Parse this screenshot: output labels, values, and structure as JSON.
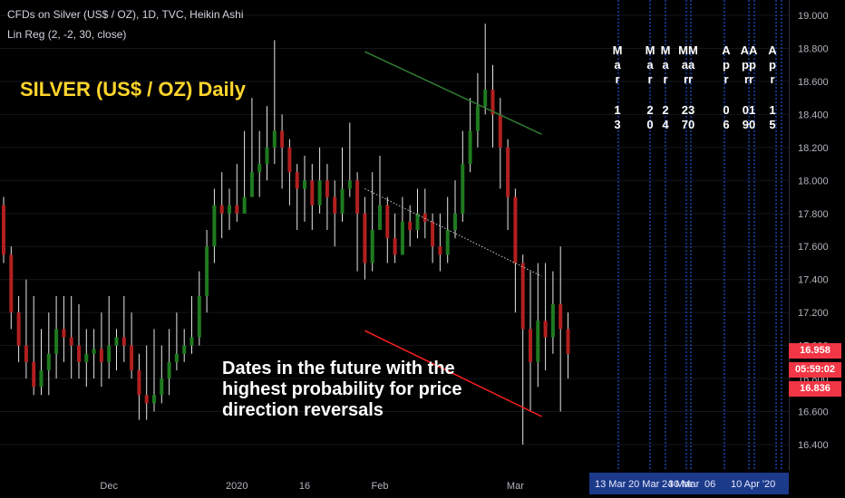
{
  "header": {
    "line1": "CFDs on Silver (US$ / OZ), 1D, TVC, Heikin Ashi",
    "line2": "Lin Reg (2, -2, 30, close)"
  },
  "title_overlay": "SILVER (US$ / OZ) Daily",
  "annotation_lines": [
    "Dates in the future with the",
    "highest probability for price",
    "direction reversals"
  ],
  "price_tags": [
    {
      "label": "16.958",
      "color": "#f23645"
    },
    {
      "label": "05:59:02",
      "color": "#f23645"
    },
    {
      "label": "16.836",
      "color": "#f23645"
    }
  ],
  "colors": {
    "up": "#1f7a1f",
    "down": "#b21f1f",
    "wick": "#e6e6e6",
    "green_line": "#2e7d32",
    "red_line": "#ff1f1f",
    "future_line": "#2962ff",
    "future_label_bg": "#1c3a8a"
  },
  "future_dates_vertical": [
    {
      "month": "Mar",
      "day": "13"
    },
    {
      "month": "Mar",
      "day": "20"
    },
    {
      "month": "Mar",
      "day": "24"
    },
    {
      "month": "MMaarr",
      "day": "2370"
    },
    {
      "month": "Apr",
      "day": "06"
    },
    {
      "month": "AApprr",
      "day": "0190"
    },
    {
      "month": "Apr",
      "day": "15"
    }
  ],
  "future_date_axis_labels": [
    "13 Mar",
    "20 Mar",
    "24 Mar",
    "30 Mar",
    "06",
    "10 Apr '20"
  ],
  "chart_data": {
    "type": "candlestick",
    "style": "Heikin Ashi",
    "ylim": [
      16.3,
      19.05
    ],
    "y_ticks": [
      "16.400",
      "16.600",
      "16.800",
      "17.000",
      "17.200",
      "17.400",
      "17.600",
      "17.800",
      "18.000",
      "18.200",
      "18.400",
      "18.600",
      "18.800",
      "19.000"
    ],
    "x_labels": [
      {
        "label": "Dec",
        "index": 14
      },
      {
        "label": "2020",
        "index": 31
      },
      {
        "label": "16",
        "index": 40
      },
      {
        "label": "Feb",
        "index": 50
      },
      {
        "label": "Mar",
        "index": 68
      }
    ],
    "candles": [
      [
        17.85,
        17.55,
        17.9,
        17.5
      ],
      [
        17.55,
        17.2,
        17.6,
        17.1
      ],
      [
        17.2,
        17.0,
        17.3,
        16.9
      ],
      [
        17.0,
        16.9,
        17.4,
        16.8
      ],
      [
        16.9,
        16.75,
        17.3,
        16.7
      ],
      [
        16.75,
        16.85,
        17.1,
        16.7
      ],
      [
        16.85,
        16.95,
        17.2,
        16.7
      ],
      [
        16.95,
        17.1,
        17.3,
        16.8
      ],
      [
        17.1,
        17.05,
        17.3,
        16.9
      ],
      [
        17.05,
        17.0,
        17.3,
        16.8
      ],
      [
        17.0,
        16.9,
        17.25,
        16.8
      ],
      [
        16.9,
        16.95,
        17.1,
        16.75
      ],
      [
        16.95,
        16.98,
        17.1,
        16.8
      ],
      [
        16.98,
        16.9,
        17.2,
        16.75
      ],
      [
        16.9,
        17.0,
        17.3,
        16.8
      ],
      [
        17.0,
        17.05,
        17.1,
        16.85
      ],
      [
        17.05,
        17.0,
        17.3,
        16.9
      ],
      [
        17.0,
        16.85,
        17.2,
        16.8
      ],
      [
        16.85,
        16.7,
        16.95,
        16.55
      ],
      [
        16.7,
        16.65,
        17.0,
        16.55
      ],
      [
        16.65,
        16.7,
        17.1,
        16.6
      ],
      [
        16.7,
        16.8,
        17.0,
        16.65
      ],
      [
        16.8,
        16.9,
        17.1,
        16.7
      ],
      [
        16.9,
        16.95,
        17.2,
        16.85
      ],
      [
        16.95,
        17.0,
        17.1,
        16.9
      ],
      [
        17.0,
        17.05,
        17.3,
        16.95
      ],
      [
        17.05,
        17.3,
        17.45,
        17.0
      ],
      [
        17.3,
        17.6,
        17.7,
        17.2
      ],
      [
        17.6,
        17.85,
        17.95,
        17.5
      ],
      [
        17.85,
        17.8,
        18.05,
        17.65
      ],
      [
        17.8,
        17.85,
        17.95,
        17.7
      ],
      [
        17.85,
        17.8,
        18.1,
        17.75
      ],
      [
        17.8,
        17.9,
        18.3,
        17.8
      ],
      [
        17.9,
        18.05,
        18.5,
        17.9
      ],
      [
        18.05,
        18.1,
        18.3,
        17.9
      ],
      [
        18.1,
        18.2,
        18.45,
        18.0
      ],
      [
        18.2,
        18.3,
        18.85,
        18.1
      ],
      [
        18.3,
        18.2,
        18.4,
        17.95
      ],
      [
        18.2,
        18.05,
        18.25,
        17.85
      ],
      [
        18.05,
        17.95,
        18.1,
        17.7
      ],
      [
        17.95,
        18.0,
        18.15,
        17.75
      ],
      [
        18.0,
        17.85,
        18.1,
        17.7
      ],
      [
        17.85,
        18.0,
        18.2,
        17.8
      ],
      [
        18.0,
        17.9,
        18.1,
        17.7
      ],
      [
        17.9,
        17.8,
        18.0,
        17.6
      ],
      [
        17.8,
        17.95,
        18.2,
        17.75
      ],
      [
        17.95,
        18.0,
        18.35,
        17.9
      ],
      [
        18.0,
        17.8,
        18.05,
        17.45
      ],
      [
        17.8,
        17.5,
        17.9,
        17.4
      ],
      [
        17.5,
        17.7,
        18.05,
        17.45
      ],
      [
        17.7,
        17.85,
        18.15,
        17.7
      ],
      [
        17.85,
        17.65,
        17.9,
        17.5
      ],
      [
        17.65,
        17.55,
        17.8,
        17.5
      ],
      [
        17.55,
        17.75,
        17.9,
        17.55
      ],
      [
        17.75,
        17.7,
        17.85,
        17.6
      ],
      [
        17.7,
        17.8,
        17.95,
        17.65
      ],
      [
        17.8,
        17.75,
        17.95,
        17.65
      ],
      [
        17.75,
        17.6,
        17.8,
        17.5
      ],
      [
        17.6,
        17.55,
        17.8,
        17.45
      ],
      [
        17.55,
        17.7,
        17.9,
        17.5
      ],
      [
        17.7,
        17.8,
        18.0,
        17.65
      ],
      [
        17.8,
        18.1,
        18.3,
        17.75
      ],
      [
        18.1,
        18.3,
        18.5,
        18.05
      ],
      [
        18.3,
        18.45,
        18.65,
        18.2
      ],
      [
        18.45,
        18.55,
        18.95,
        18.4
      ],
      [
        18.55,
        18.4,
        18.7,
        18.2
      ],
      [
        18.4,
        18.2,
        18.5,
        17.95
      ],
      [
        18.2,
        17.9,
        18.25,
        17.7
      ],
      [
        17.9,
        17.5,
        17.95,
        17.2
      ],
      [
        17.5,
        17.1,
        17.55,
        16.4
      ],
      [
        17.1,
        16.9,
        17.45,
        16.6
      ],
      [
        16.9,
        17.15,
        17.5,
        16.75
      ],
      [
        17.15,
        17.05,
        17.5,
        16.85
      ],
      [
        17.05,
        17.25,
        17.45,
        16.95
      ],
      [
        17.25,
        17.1,
        17.6,
        16.6
      ],
      [
        17.1,
        16.95,
        17.2,
        16.8
      ]
    ],
    "trendlines": [
      {
        "name": "green-resistance",
        "from": [
          48,
          18.78
        ],
        "to": [
          71.5,
          18.28
        ]
      },
      {
        "name": "dotted-regression",
        "from": [
          48,
          17.95
        ],
        "to": [
          71.5,
          17.42
        ]
      },
      {
        "name": "red-support",
        "from": [
          48,
          17.09
        ],
        "to": [
          71.5,
          16.57
        ]
      }
    ]
  }
}
